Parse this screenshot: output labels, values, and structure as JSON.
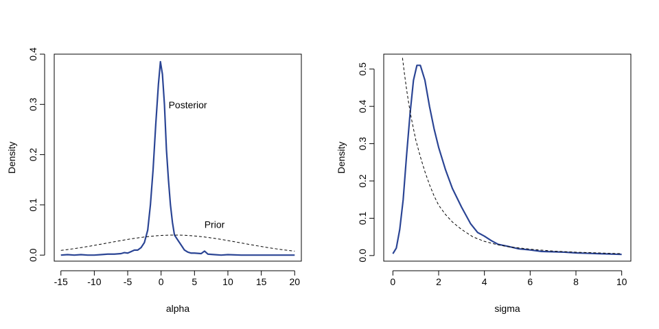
{
  "chart_data": [
    {
      "type": "line",
      "title": "",
      "xlabel": "alpha",
      "ylabel": "Density",
      "xlim": [
        -16,
        21
      ],
      "ylim": [
        -0.012,
        0.4
      ],
      "xticks": [
        -15,
        -10,
        -5,
        0,
        5,
        10,
        15,
        20
      ],
      "xtick_labels": [
        "-15",
        "-10",
        "-5",
        "0",
        "5",
        "10",
        "15",
        "20"
      ],
      "yticks": [
        0.0,
        0.1,
        0.2,
        0.3,
        0.4
      ],
      "ytick_labels": [
        "0.0",
        "0.1",
        "0.2",
        "0.3",
        "0.4"
      ],
      "grid": false,
      "series": [
        {
          "name": "Posterior",
          "color": "#2a4494",
          "style": "solid",
          "points": [
            [
              -15,
              0.0
            ],
            [
              -14,
              0.001
            ],
            [
              -13,
              0.0
            ],
            [
              -12,
              0.001
            ],
            [
              -11,
              0.0
            ],
            [
              -10,
              0.0
            ],
            [
              -9,
              0.001
            ],
            [
              -8,
              0.002
            ],
            [
              -7,
              0.002
            ],
            [
              -6,
              0.003
            ],
            [
              -5.5,
              0.005
            ],
            [
              -5,
              0.004
            ],
            [
              -4.5,
              0.007
            ],
            [
              -4,
              0.01
            ],
            [
              -3.5,
              0.01
            ],
            [
              -3,
              0.015
            ],
            [
              -2.5,
              0.025
            ],
            [
              -2,
              0.05
            ],
            [
              -1.6,
              0.1
            ],
            [
              -1.2,
              0.17
            ],
            [
              -0.8,
              0.26
            ],
            [
              -0.4,
              0.34
            ],
            [
              -0.1,
              0.385
            ],
            [
              0.2,
              0.36
            ],
            [
              0.5,
              0.3
            ],
            [
              0.8,
              0.21
            ],
            [
              1.1,
              0.15
            ],
            [
              1.4,
              0.1
            ],
            [
              1.7,
              0.065
            ],
            [
              2.0,
              0.04
            ],
            [
              2.5,
              0.03
            ],
            [
              3.0,
              0.02
            ],
            [
              3.5,
              0.01
            ],
            [
              4,
              0.006
            ],
            [
              4.5,
              0.004
            ],
            [
              5,
              0.004
            ],
            [
              6,
              0.003
            ],
            [
              6.5,
              0.008
            ],
            [
              7,
              0.002
            ],
            [
              8,
              0.001
            ],
            [
              9,
              0.0
            ],
            [
              10,
              0.001
            ],
            [
              12,
              0.0
            ],
            [
              15,
              0.0
            ],
            [
              17,
              0.0
            ],
            [
              20,
              0.0
            ]
          ]
        },
        {
          "name": "Prior",
          "color": "#000000",
          "style": "dashed",
          "normal": {
            "mean": 2,
            "sd": 10,
            "from": -15,
            "to": 20
          }
        }
      ],
      "annotations": [
        {
          "text": "Posterior",
          "x": 4,
          "y": 0.297
        },
        {
          "text": "Prior",
          "x": 8,
          "y": 0.059
        }
      ]
    },
    {
      "type": "line",
      "title": "",
      "xlabel": "sigma",
      "ylabel": "Density",
      "xlim": [
        -0.4,
        10.4
      ],
      "ylim": [
        -0.015,
        0.54
      ],
      "xticks": [
        0,
        2,
        4,
        6,
        8,
        10
      ],
      "xtick_labels": [
        "0",
        "2",
        "4",
        "6",
        "8",
        "10"
      ],
      "yticks": [
        0.0,
        0.1,
        0.2,
        0.3,
        0.4,
        0.5
      ],
      "ytick_labels": [
        "0.0",
        "0.1",
        "0.2",
        "0.3",
        "0.4",
        "0.5"
      ],
      "grid": false,
      "series": [
        {
          "name": "Posterior",
          "color": "#2a4494",
          "style": "solid",
          "points": [
            [
              0,
              0.005
            ],
            [
              0.15,
              0.02
            ],
            [
              0.3,
              0.07
            ],
            [
              0.45,
              0.15
            ],
            [
              0.6,
              0.27
            ],
            [
              0.75,
              0.38
            ],
            [
              0.9,
              0.47
            ],
            [
              1.05,
              0.51
            ],
            [
              1.2,
              0.51
            ],
            [
              1.4,
              0.47
            ],
            [
              1.6,
              0.4
            ],
            [
              1.8,
              0.34
            ],
            [
              2.0,
              0.29
            ],
            [
              2.3,
              0.23
            ],
            [
              2.6,
              0.18
            ],
            [
              3.0,
              0.13
            ],
            [
              3.4,
              0.085
            ],
            [
              3.7,
              0.062
            ],
            [
              4.0,
              0.052
            ],
            [
              4.3,
              0.04
            ],
            [
              4.6,
              0.03
            ],
            [
              5.0,
              0.025
            ],
            [
              5.5,
              0.018
            ],
            [
              6.0,
              0.015
            ],
            [
              6.5,
              0.011
            ],
            [
              7.0,
              0.01
            ],
            [
              7.5,
              0.009
            ],
            [
              8.0,
              0.007
            ],
            [
              8.5,
              0.006
            ],
            [
              9.0,
              0.005
            ],
            [
              9.5,
              0.004
            ],
            [
              10,
              0.003
            ]
          ]
        },
        {
          "name": "Prior",
          "color": "#000000",
          "style": "dashed",
          "points": [
            [
              0.42,
              0.53
            ],
            [
              0.5,
              0.49
            ],
            [
              0.6,
              0.445
            ],
            [
              0.7,
              0.405
            ],
            [
              0.8,
              0.37
            ],
            [
              0.9,
              0.34
            ],
            [
              1.0,
              0.31
            ],
            [
              1.2,
              0.265
            ],
            [
              1.4,
              0.225
            ],
            [
              1.6,
              0.19
            ],
            [
              1.8,
              0.16
            ],
            [
              2.0,
              0.135
            ],
            [
              2.3,
              0.11
            ],
            [
              2.6,
              0.09
            ],
            [
              3.0,
              0.07
            ],
            [
              3.5,
              0.05
            ],
            [
              4.0,
              0.038
            ],
            [
              4.5,
              0.03
            ],
            [
              5.0,
              0.024
            ],
            [
              6.0,
              0.017
            ],
            [
              7.0,
              0.012
            ],
            [
              8.0,
              0.009
            ],
            [
              9.0,
              0.007
            ],
            [
              10.0,
              0.005
            ]
          ]
        }
      ],
      "annotations": []
    }
  ]
}
